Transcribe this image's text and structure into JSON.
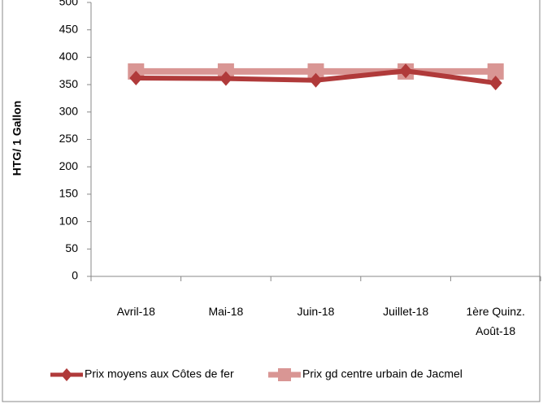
{
  "chart_data": {
    "type": "line",
    "y_label": "HTG/ 1 Gallon",
    "categories": [
      "Avril-18",
      "Mai-18",
      "Juin-18",
      "Juillet-18",
      "1ère Quinz. Août-18"
    ],
    "series": [
      {
        "name": "Prix moyens aux Côtes de fer",
        "color": "#b03a3a",
        "marker": "diamond",
        "values": [
          362,
          361,
          358,
          375,
          353
        ]
      },
      {
        "name": "Prix gd centre urbain de Jacmel",
        "color": "#d99694",
        "marker": "square",
        "values": [
          374,
          374,
          374,
          374,
          374
        ]
      }
    ],
    "ylim": [
      0,
      500
    ],
    "yticks": [
      0,
      50,
      100,
      150,
      200,
      250,
      300,
      350,
      400,
      450,
      500
    ],
    "grid": false,
    "legend": "bottom"
  }
}
